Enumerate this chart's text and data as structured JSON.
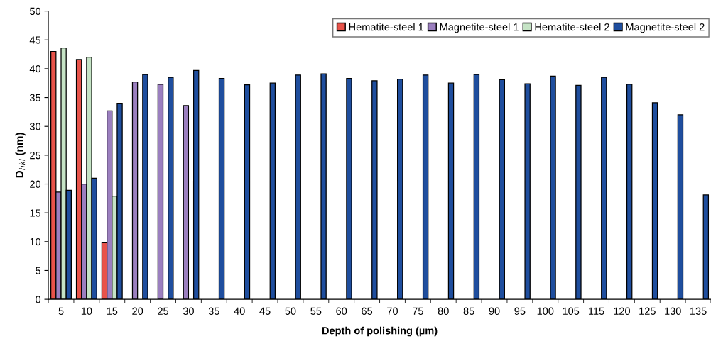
{
  "chart_data": {
    "type": "bar",
    "xlabel": "Depth of polishing (µm)",
    "ylabel": "D$_{hkl}$ (nm)",
    "categories": [
      "5",
      "10",
      "15",
      "20",
      "25",
      "30",
      "35",
      "40",
      "45",
      "50",
      "55",
      "60",
      "65",
      "70",
      "75",
      "80",
      "85",
      "90",
      "95",
      "100",
      "105",
      "115",
      "120",
      "125",
      "130",
      "135"
    ],
    "series": [
      {
        "name": "Hematite-steel 1",
        "color": "#e8534a",
        "values": [
          43,
          41.6,
          9.8,
          null,
          null,
          null,
          null,
          null,
          null,
          null,
          null,
          null,
          null,
          null,
          null,
          null,
          null,
          null,
          null,
          null,
          null,
          null,
          null,
          null,
          null,
          null
        ]
      },
      {
        "name": "Magnetite-steel 1",
        "color": "#9b7fbf",
        "values": [
          18.6,
          20,
          32.7,
          37.7,
          37.3,
          33.6,
          null,
          null,
          null,
          null,
          null,
          null,
          null,
          null,
          null,
          null,
          null,
          null,
          null,
          null,
          null,
          null,
          null,
          null,
          null,
          null
        ]
      },
      {
        "name": "Hematite-steel 2",
        "color": "#c5e3c5",
        "values": [
          43.6,
          42,
          17.9,
          null,
          null,
          null,
          null,
          null,
          null,
          null,
          null,
          null,
          null,
          null,
          null,
          null,
          null,
          null,
          null,
          null,
          null,
          null,
          null,
          null,
          null,
          null
        ]
      },
      {
        "name": "Magnetite-steel 2",
        "color": "#1f4e9e",
        "values": [
          18.9,
          21,
          34,
          39,
          38.5,
          39.7,
          38.3,
          37.2,
          37.5,
          38.9,
          39.1,
          38.3,
          37.9,
          38.2,
          38.9,
          37.5,
          39,
          38.1,
          37.4,
          38.7,
          37.1,
          38.5,
          37.3,
          34.1,
          32,
          18.1
        ]
      }
    ],
    "ylim": [
      0,
      50
    ],
    "yticks": [
      0,
      5,
      10,
      15,
      20,
      25,
      30,
      35,
      40,
      45,
      50
    ],
    "grid": false,
    "legend": "top right"
  }
}
